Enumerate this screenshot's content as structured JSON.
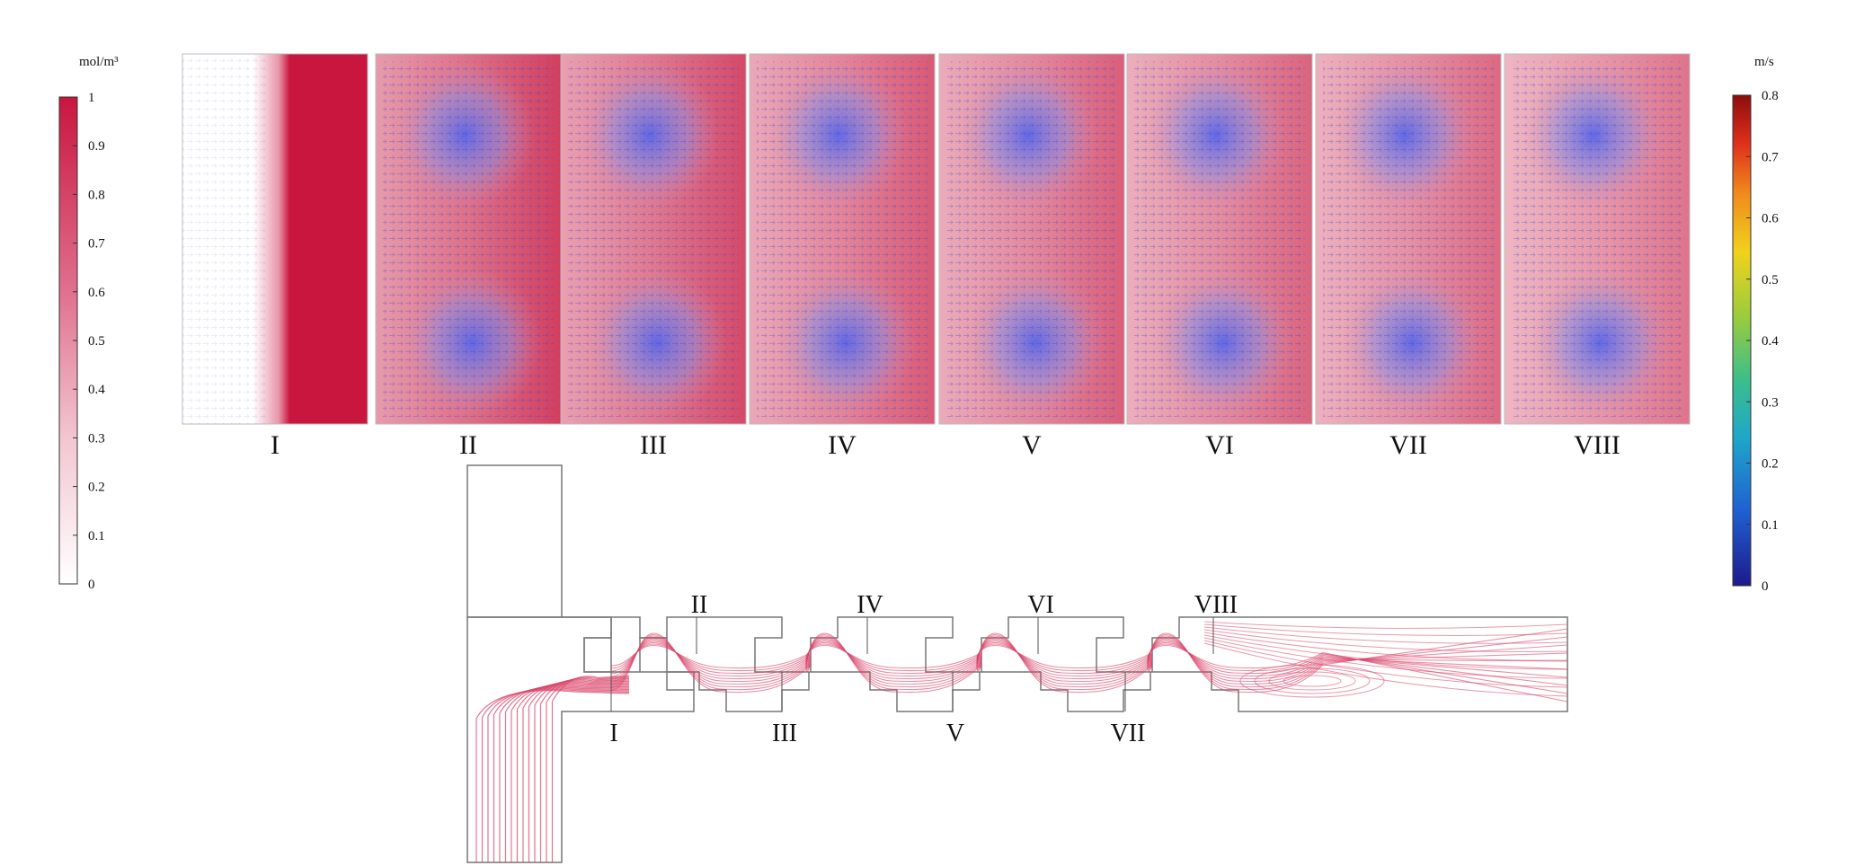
{
  "concentration_colorbar": {
    "unit": "mol/m³",
    "ticks": [
      "1",
      "0.9",
      "0.8",
      "0.7",
      "0.6",
      "0.5",
      "0.4",
      "0.3",
      "0.2",
      "0.1",
      "0"
    ],
    "range": [
      0,
      1
    ],
    "color_low": "#ffffff",
    "color_high": "#c8163f"
  },
  "velocity_colorbar": {
    "unit": "m/s",
    "ticks": [
      "0.8",
      "0.7",
      "0.6",
      "0.5",
      "0.4",
      "0.3",
      "0.2",
      "0.1",
      "0"
    ],
    "range": [
      0,
      0.8
    ],
    "colormap": [
      "#1e1a8a",
      "#1f5fd0",
      "#1fa6c9",
      "#3bbf8a",
      "#9ccc3c",
      "#f0d21c",
      "#f08a1c",
      "#e0301c",
      "#8c0d0d"
    ]
  },
  "cross_sections": [
    {
      "label": "I",
      "concentration_level": 0.45,
      "vortex": false
    },
    {
      "label": "II",
      "concentration_level": 0.72,
      "vortex": true
    },
    {
      "label": "III",
      "concentration_level": 0.68,
      "vortex": true
    },
    {
      "label": "IV",
      "concentration_level": 0.62,
      "vortex": true
    },
    {
      "label": "V",
      "concentration_level": 0.6,
      "vortex": true
    },
    {
      "label": "VI",
      "concentration_level": 0.58,
      "vortex": true
    },
    {
      "label": "VII",
      "concentration_level": 0.56,
      "vortex": true
    },
    {
      "label": "VIII",
      "concentration_level": 0.52,
      "vortex": true
    }
  ],
  "channel_labels": {
    "bottom": [
      "I",
      "III",
      "V",
      "VII"
    ],
    "top": [
      "II",
      "IV",
      "VI",
      "VIII"
    ]
  },
  "streamline_color": "#d9456a"
}
